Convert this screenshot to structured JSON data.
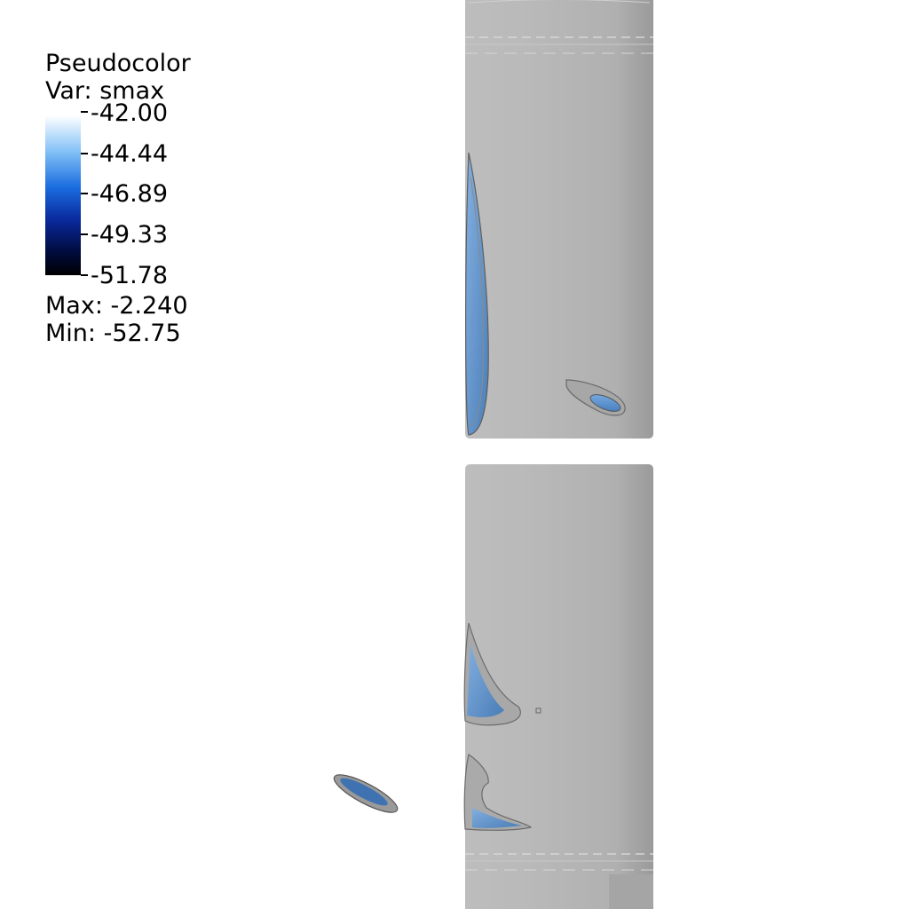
{
  "legend": {
    "title": "Pseudocolor",
    "variable": "Var: smax",
    "ticks": [
      "-42.00",
      "-44.44",
      "-46.89",
      "-49.33",
      "-51.78"
    ],
    "max": "Max: -2.240",
    "min": "Min: -52.75",
    "colormap_colors": [
      "#ffffff",
      "#86c3f7",
      "#1a6de0",
      "#0a2a9e",
      "#000000"
    ]
  },
  "scene": {
    "cylinder_color": "#b8b8b8",
    "contour_color": "#5a90c8"
  }
}
